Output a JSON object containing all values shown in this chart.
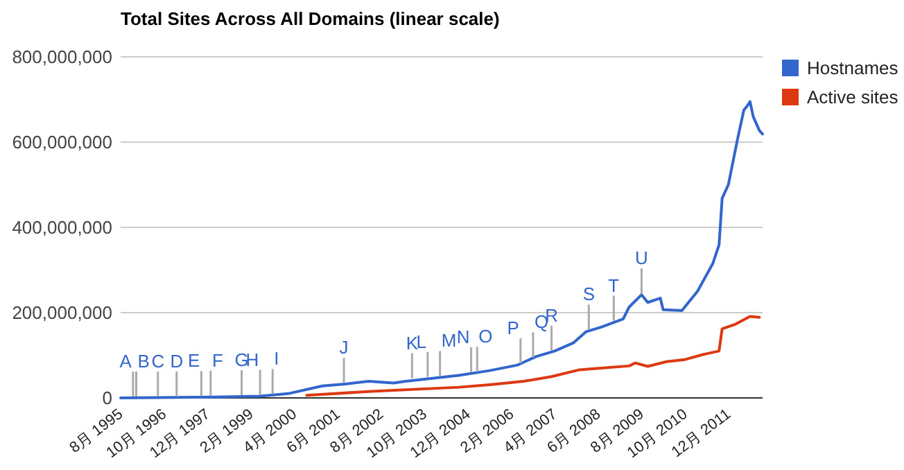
{
  "chart_data": {
    "type": "line",
    "title": "Total Sites Across All Domains (linear scale)",
    "xlim": [
      "1995-08",
      "2012-11"
    ],
    "xticks": [
      {
        "value": "1995-08",
        "label": "8月 1995"
      },
      {
        "value": "1996-10",
        "label": "10月 1996"
      },
      {
        "value": "1997-12",
        "label": "12月 1997"
      },
      {
        "value": "1999-02",
        "label": "2月 1999"
      },
      {
        "value": "2000-04",
        "label": "4月 2000"
      },
      {
        "value": "2001-06",
        "label": "6月 2001"
      },
      {
        "value": "2002-08",
        "label": "8月 2002"
      },
      {
        "value": "2003-10",
        "label": "10月 2003"
      },
      {
        "value": "2004-12",
        "label": "12月 2004"
      },
      {
        "value": "2006-02",
        "label": "2月 2006"
      },
      {
        "value": "2007-04",
        "label": "4月 2007"
      },
      {
        "value": "2008-06",
        "label": "6月 2008"
      },
      {
        "value": "2009-08",
        "label": "8月 2009"
      },
      {
        "value": "2010-10",
        "label": "10月 2010"
      },
      {
        "value": "2011-12",
        "label": "12月 2011"
      }
    ],
    "ylim": [
      0,
      800000000
    ],
    "yticks": [
      {
        "value": 0,
        "label": "0"
      },
      {
        "value": 200000000,
        "label": "200,000,000"
      },
      {
        "value": 400000000,
        "label": "400,000,000"
      },
      {
        "value": 600000000,
        "label": "600,000,000"
      },
      {
        "value": 800000000,
        "label": "800,000,000"
      }
    ],
    "grid": "y",
    "legend": "right",
    "series": [
      {
        "name": "Hostnames",
        "color": "#3366cc",
        "x": [
          "1995-08",
          "1998-02",
          "1999-05",
          "2000-02",
          "2001-01",
          "2001-09",
          "2002-04",
          "2002-12",
          "2003-04",
          "2004-09",
          "2005-07",
          "2006-04",
          "2006-10",
          "2007-04",
          "2007-10",
          "2008-02",
          "2008-07",
          "2009-02",
          "2009-04",
          "2009-08",
          "2009-10",
          "2010-02",
          "2010-03",
          "2010-09",
          "2011-02",
          "2011-07",
          "2011-09",
          "2011-10",
          "2011-12",
          "2012-03",
          "2012-05",
          "2012-06",
          "2012-07",
          "2012-08",
          "2012-10",
          "2012-11"
        ],
        "values": [
          0,
          2000000,
          4000000,
          10000000,
          28000000,
          33000000,
          39000000,
          35000000,
          39000000,
          53000000,
          64000000,
          77000000,
          97000000,
          110000000,
          129000000,
          155000000,
          166000000,
          185000000,
          213000000,
          242000000,
          224000000,
          234000000,
          207000000,
          205000000,
          250000000,
          315000000,
          359000000,
          468000000,
          500000000,
          608000000,
          675000000,
          684000000,
          695000000,
          660000000,
          627000000,
          619000000
        ]
      },
      {
        "name": "Active sites",
        "color": "#dc3912",
        "x": [
          "2000-08",
          "2002-04",
          "2004-09",
          "2005-07",
          "2006-06",
          "2007-03",
          "2007-12",
          "2008-09",
          "2009-04",
          "2009-06",
          "2009-10",
          "2010-04",
          "2010-10",
          "2011-04",
          "2011-09",
          "2011-10",
          "2012-02",
          "2012-07",
          "2012-10"
        ],
        "values": [
          6000000,
          15000000,
          25000000,
          31000000,
          39000000,
          50000000,
          66000000,
          71000000,
          75000000,
          82000000,
          74000000,
          85000000,
          90000000,
          102000000,
          110000000,
          162000000,
          172000000,
          191000000,
          189000000
        ]
      }
    ],
    "annotations": [
      {
        "text": "A",
        "x": "1995-12",
        "y": 0
      },
      {
        "text": "B",
        "x": "1996-01",
        "y": 0
      },
      {
        "text": "C",
        "x": "1996-08",
        "y": 0
      },
      {
        "text": "D",
        "x": "1997-02",
        "y": 0
      },
      {
        "text": "E",
        "x": "1997-10",
        "y": 1000000
      },
      {
        "text": "F",
        "x": "1998-01",
        "y": 2000000
      },
      {
        "text": "G",
        "x": "1998-11",
        "y": 3000000
      },
      {
        "text": "H",
        "x": "1999-05",
        "y": 4000000
      },
      {
        "text": "I",
        "x": "1999-09",
        "y": 6000000
      },
      {
        "text": "J",
        "x": "2001-08",
        "y": 32000000
      },
      {
        "text": "K",
        "x": "2003-06",
        "y": 43000000
      },
      {
        "text": "L",
        "x": "2003-11",
        "y": 46000000
      },
      {
        "text": "M",
        "x": "2004-03",
        "y": 48000000
      },
      {
        "text": "N",
        "x": "2005-01",
        "y": 57000000
      },
      {
        "text": "O",
        "x": "2005-03",
        "y": 58000000
      },
      {
        "text": "P",
        "x": "2006-05",
        "y": 78000000
      },
      {
        "text": "Q",
        "x": "2006-09",
        "y": 92000000
      },
      {
        "text": "R",
        "x": "2007-03",
        "y": 108000000
      },
      {
        "text": "S",
        "x": "2008-03",
        "y": 157000000
      },
      {
        "text": "T",
        "x": "2008-11",
        "y": 178000000
      },
      {
        "text": "U",
        "x": "2009-08",
        "y": 242000000
      }
    ]
  }
}
